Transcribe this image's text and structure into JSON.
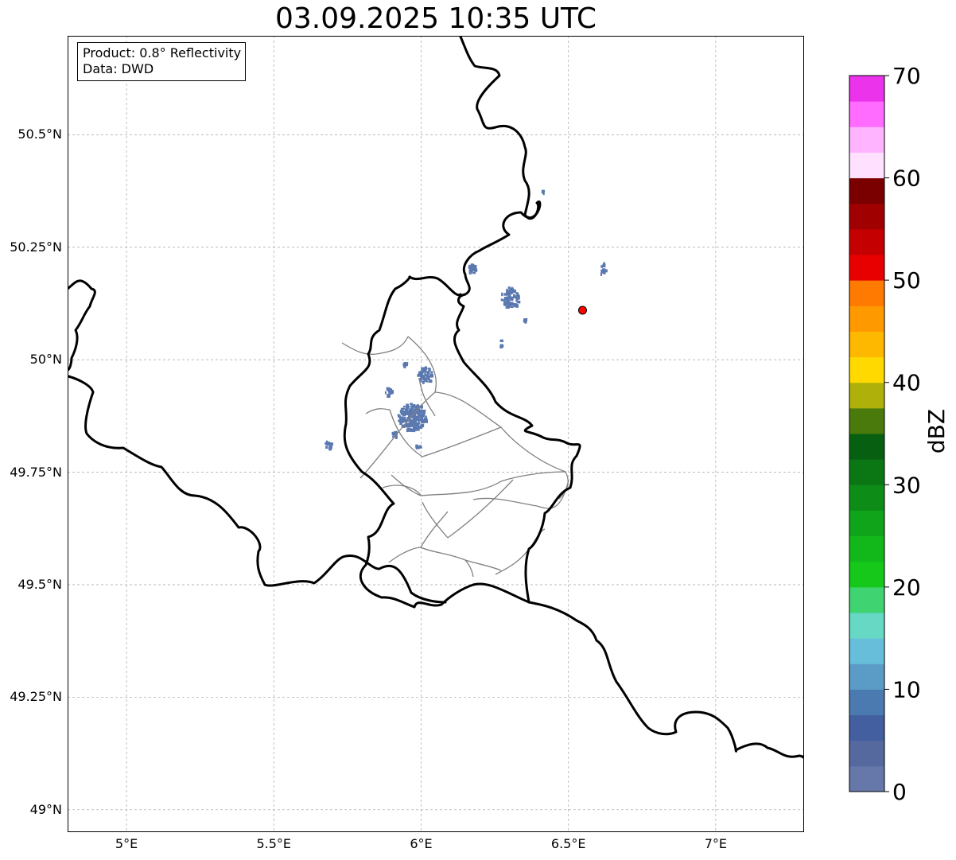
{
  "title": "03.09.2025 10:35 UTC",
  "info": {
    "product": "Product: 0.8° Reflectivity",
    "source": "Data: DWD"
  },
  "map_extent": {
    "lon_min": 4.8,
    "lon_max": 7.3,
    "lat_min": 48.95,
    "lat_max": 50.72
  },
  "grid": {
    "lat_ticks": [
      {
        "value": 50.5,
        "label": "50.5°N"
      },
      {
        "value": 50.25,
        "label": "50.25°N"
      },
      {
        "value": 50.0,
        "label": "50°N"
      },
      {
        "value": 49.75,
        "label": "49.75°N"
      },
      {
        "value": 49.5,
        "label": "49.5°N"
      },
      {
        "value": 49.25,
        "label": "49.25°N"
      },
      {
        "value": 49.0,
        "label": "49°N"
      }
    ],
    "lon_ticks": [
      {
        "value": 5.0,
        "label": "5°E"
      },
      {
        "value": 5.5,
        "label": "5.5°E"
      },
      {
        "value": 6.0,
        "label": "6°E"
      },
      {
        "value": 6.5,
        "label": "6.5°E"
      },
      {
        "value": 7.0,
        "label": "7°E"
      }
    ]
  },
  "radar_site": {
    "lon": 6.548,
    "lat": 50.11,
    "color": "#ff0000"
  },
  "borders": {
    "national_color": "#000000",
    "regional_color": "#808080"
  },
  "echo_color": "#5b79b0",
  "colorbar": {
    "unit_label": "dBZ",
    "min": 0,
    "max": 70,
    "step": 2.5,
    "tick_labels": [
      {
        "value": 0,
        "label": "0"
      },
      {
        "value": 10,
        "label": "10"
      },
      {
        "value": 20,
        "label": "20"
      },
      {
        "value": 30,
        "label": "30"
      },
      {
        "value": 40,
        "label": "40"
      },
      {
        "value": 50,
        "label": "50"
      },
      {
        "value": 60,
        "label": "60"
      },
      {
        "value": 70,
        "label": "70"
      }
    ],
    "colors": [
      "#6677aa",
      "#55699f",
      "#445f9f",
      "#4a7ab0",
      "#5b9cc6",
      "#66bedb",
      "#66d8c4",
      "#3fd372",
      "#15c81a",
      "#12b81a",
      "#10a41a",
      "#0e8c18",
      "#0b7714",
      "#076011",
      "#4a7a0b",
      "#afb10a",
      "#ffd900",
      "#ffb800",
      "#ff9900",
      "#ff7a00",
      "#e80000",
      "#c40000",
      "#a00000",
      "#7a0000",
      "#ffe0ff",
      "#ffb4ff",
      "#ff6cff",
      "#ea33ea"
    ]
  }
}
